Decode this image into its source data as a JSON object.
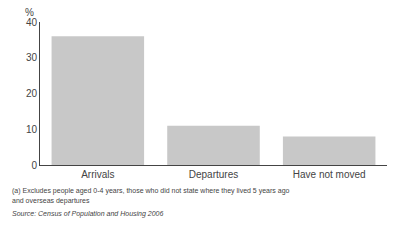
{
  "chart_data": {
    "type": "bar",
    "categories": [
      "Arrivals",
      "Departures",
      "Have not moved"
    ],
    "values": [
      36,
      11,
      8
    ],
    "color": "#c8c8c8",
    "ylim": [
      0,
      40
    ],
    "yticks": [
      0,
      10,
      20,
      30,
      40
    ],
    "ylabel": "%",
    "annotations": [
      "(a) Excludes people aged 0-4 years, those who did not state where they lived 5 years ago",
      "and overseas departures",
      "Source: Census of Population and Housing 2006"
    ],
    "grid": false
  }
}
